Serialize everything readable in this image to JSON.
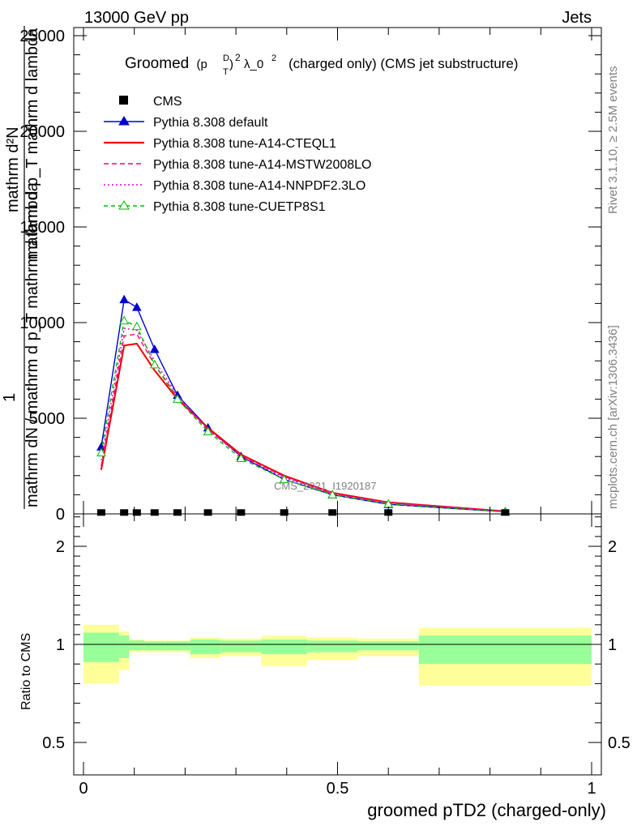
{
  "header": {
    "energy_label": "13000 GeV pp",
    "process_label": "Jets"
  },
  "side_labels": {
    "rivet": "Rivet 3.1.10, ≥ 2.5M events",
    "mcplots": "mcplots.cern.ch [arXiv:1306.3436]"
  },
  "watermark": "CMS_2021_I1920187",
  "colors": {
    "default": "#0000cc",
    "cteql1": "#ee0000",
    "mstw": "#ff0077",
    "nnpdf": "#dd00dd",
    "cuetp8s1": "#00bb00",
    "band_inner": "#99ff99",
    "band_outer": "#ffff99"
  },
  "chart_data": [
    {
      "type": "line",
      "title": "Groomed (p_T^D)^2 λ_0^2  (charged only) (CMS jet substructure)",
      "title_parts": {
        "pre": "Groomed",
        "p": "(p",
        "sup_d": "D",
        "sub_t": "T",
        "close": ")",
        "sup_2": "2",
        "lambda": "λ_0",
        "sup_2b": "2",
        "post": "(charged only) (CMS jet substructure)"
      },
      "ylabel_lines": [
        "1",
        "mathrm dN / mathrm d p_T mathrm d lambda",
        "mathrm d²N",
        "mathrm d p_T mathrm d lambda",
        "mathrm dN"
      ],
      "ylabel": {
        "numerator": "1",
        "denominator": "mathrm dN / mathrm d p_T mathrm d lambda",
        "top": "mathrm d²N",
        "bottom": "mathrm d p_T mathrm d lambda",
        "p_label": "p",
        "t_sub": "T"
      },
      "xlim": [
        0,
        1
      ],
      "ylim": [
        0,
        25000
      ],
      "y_ticks": [
        {
          "v": 0,
          "label": "0"
        },
        {
          "v": 5000,
          "label": "5000"
        },
        {
          "v": 10000,
          "label": "10000"
        },
        {
          "v": 15000,
          "label": "15000"
        },
        {
          "v": 20000,
          "label": "20000"
        },
        {
          "v": 25000,
          "label": "25000"
        }
      ],
      "legend": [
        "CMS",
        "Pythia 8.308 default",
        "Pythia 8.308 tune-A14-CTEQL1",
        "Pythia 8.308 tune-A14-MSTW2008LO",
        "Pythia 8.308 tune-A14-NNPDF2.3LO",
        "Pythia 8.308 tune-CUETP8S1"
      ],
      "legend_position": "top-left",
      "data_points": {
        "name": "CMS",
        "x": [
          0.035,
          0.08,
          0.105,
          0.14,
          0.185,
          0.245,
          0.31,
          0.395,
          0.49,
          0.6,
          0.83
        ],
        "y": [
          30,
          30,
          30,
          30,
          30,
          30,
          30,
          30,
          30,
          30,
          30
        ]
      },
      "series": [
        {
          "name": "Pythia 8.308 default",
          "color_key": "default",
          "dash": "",
          "marker": "triangle-filled",
          "x": [
            0.035,
            0.08,
            0.105,
            0.14,
            0.185,
            0.245,
            0.31,
            0.395,
            0.49,
            0.6,
            0.83
          ],
          "y": [
            3500,
            11200,
            10800,
            8600,
            6200,
            4500,
            3000,
            1800,
            1000,
            500,
            110
          ]
        },
        {
          "name": "Pythia 8.308 tune-A14-CTEQL1",
          "color_key": "cteql1",
          "dash": "",
          "marker": "none",
          "x": [
            0.035,
            0.08,
            0.105,
            0.14,
            0.185,
            0.245,
            0.31,
            0.395,
            0.49,
            0.6,
            0.83
          ],
          "y": [
            2300,
            8800,
            8900,
            7500,
            6000,
            4500,
            3100,
            2000,
            1100,
            600,
            140
          ]
        },
        {
          "name": "Pythia 8.308 tune-A14-MSTW2008LO",
          "color_key": "mstw",
          "dash": "6,4",
          "marker": "none",
          "x": [
            0.035,
            0.08,
            0.105,
            0.14,
            0.185,
            0.245,
            0.31,
            0.395,
            0.49,
            0.6,
            0.83
          ],
          "y": [
            2500,
            9300,
            9400,
            7800,
            6100,
            4400,
            3050,
            1950,
            1050,
            580,
            130
          ]
        },
        {
          "name": "Pythia 8.308 tune-A14-NNPDF2.3LO",
          "color_key": "nnpdf",
          "dash": "2,3",
          "marker": "none",
          "x": [
            0.035,
            0.08,
            0.105,
            0.14,
            0.185,
            0.245,
            0.31,
            0.395,
            0.49,
            0.6,
            0.83
          ],
          "y": [
            2800,
            9700,
            9600,
            8000,
            6200,
            4400,
            3000,
            1900,
            1030,
            570,
            125
          ]
        },
        {
          "name": "Pythia 8.308 tune-CUETP8S1",
          "color_key": "cuetp8s1",
          "dash": "5,4",
          "marker": "triangle-open",
          "x": [
            0.035,
            0.08,
            0.105,
            0.14,
            0.185,
            0.245,
            0.31,
            0.395,
            0.49,
            0.6,
            0.83
          ],
          "y": [
            3200,
            10100,
            9800,
            7800,
            6000,
            4300,
            2900,
            1800,
            1000,
            520,
            115
          ]
        }
      ]
    },
    {
      "type": "line",
      "ylabel": "Ratio to CMS",
      "xlabel": "groomed pTD2 (charged-only)",
      "xlim": [
        0,
        1
      ],
      "ylim": [
        0.4,
        2.4
      ],
      "y_ticks": [
        {
          "v": 0.5,
          "label": "0.5"
        },
        {
          "v": 1,
          "label": "1"
        },
        {
          "v": 2,
          "label": "2"
        }
      ],
      "x_ticks": [
        {
          "v": 0,
          "label": "0"
        },
        {
          "v": 0.5,
          "label": "0.5"
        },
        {
          "v": 1,
          "label": "1"
        }
      ],
      "reference": 1,
      "bands": [
        {
          "x0": 0.0,
          "x1": 0.07,
          "inner": [
            0.91,
            1.12
          ],
          "outer": [
            0.8,
            1.2
          ]
        },
        {
          "x0": 0.07,
          "x1": 0.09,
          "inner": [
            0.93,
            1.09
          ],
          "outer": [
            0.87,
            1.13
          ]
        },
        {
          "x0": 0.09,
          "x1": 0.12,
          "inner": [
            0.97,
            1.04
          ],
          "outer": [
            0.96,
            1.05
          ]
        },
        {
          "x0": 0.12,
          "x1": 0.16,
          "inner": [
            0.97,
            1.03
          ],
          "outer": [
            0.96,
            1.04
          ]
        },
        {
          "x0": 0.16,
          "x1": 0.21,
          "inner": [
            0.97,
            1.03
          ],
          "outer": [
            0.96,
            1.04
          ]
        },
        {
          "x0": 0.21,
          "x1": 0.27,
          "inner": [
            0.95,
            1.05
          ],
          "outer": [
            0.93,
            1.07
          ]
        },
        {
          "x0": 0.27,
          "x1": 0.35,
          "inner": [
            0.96,
            1.04
          ],
          "outer": [
            0.94,
            1.06
          ]
        },
        {
          "x0": 0.35,
          "x1": 0.44,
          "inner": [
            0.95,
            1.05
          ],
          "outer": [
            0.89,
            1.09
          ]
        },
        {
          "x0": 0.44,
          "x1": 0.54,
          "inner": [
            0.96,
            1.04
          ],
          "outer": [
            0.92,
            1.07
          ]
        },
        {
          "x0": 0.54,
          "x1": 0.66,
          "inner": [
            0.97,
            1.03
          ],
          "outer": [
            0.94,
            1.06
          ]
        },
        {
          "x0": 0.66,
          "x1": 1.0,
          "inner": [
            0.9,
            1.09
          ],
          "outer": [
            0.79,
            1.17
          ]
        }
      ]
    }
  ]
}
